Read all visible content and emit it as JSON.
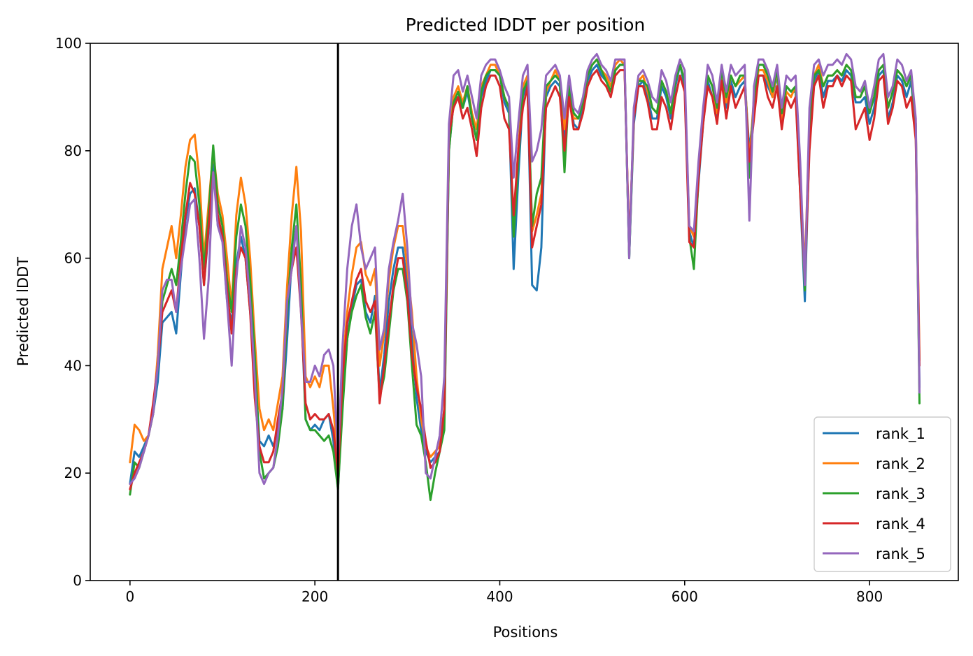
{
  "chart_data": {
    "type": "line",
    "title": "Predicted lDDT per position",
    "xlabel": "Positions",
    "ylabel": "Predicted lDDT",
    "xlim": [
      -43,
      896
    ],
    "ylim": [
      0,
      100
    ],
    "xticks": [
      0,
      200,
      400,
      600,
      800
    ],
    "yticks": [
      0,
      20,
      40,
      60,
      80,
      100
    ],
    "vline": 225,
    "grid": false,
    "legend_position": "lower right",
    "x": [
      0,
      5,
      10,
      15,
      20,
      25,
      30,
      35,
      40,
      45,
      50,
      55,
      60,
      65,
      70,
      75,
      80,
      85,
      90,
      95,
      100,
      105,
      110,
      115,
      120,
      125,
      130,
      135,
      140,
      145,
      150,
      155,
      160,
      165,
      170,
      175,
      180,
      185,
      190,
      195,
      200,
      205,
      210,
      215,
      220,
      225,
      230,
      235,
      240,
      245,
      250,
      255,
      260,
      265,
      270,
      275,
      280,
      285,
      290,
      295,
      300,
      305,
      310,
      315,
      320,
      325,
      330,
      335,
      340,
      345,
      350,
      355,
      360,
      365,
      370,
      375,
      380,
      385,
      390,
      395,
      400,
      405,
      410,
      415,
      420,
      425,
      430,
      435,
      440,
      445,
      450,
      455,
      460,
      465,
      470,
      475,
      480,
      485,
      490,
      495,
      500,
      505,
      510,
      515,
      520,
      525,
      530,
      535,
      540,
      545,
      550,
      555,
      560,
      565,
      570,
      575,
      580,
      585,
      590,
      595,
      600,
      605,
      610,
      615,
      620,
      625,
      630,
      635,
      640,
      645,
      650,
      655,
      660,
      665,
      670,
      675,
      680,
      685,
      690,
      695,
      700,
      705,
      710,
      715,
      720,
      725,
      730,
      735,
      740,
      745,
      750,
      755,
      760,
      765,
      770,
      775,
      780,
      785,
      790,
      795,
      800,
      805,
      810,
      815,
      820,
      825,
      830,
      835,
      840,
      845,
      850,
      854
    ],
    "series": [
      {
        "name": "rank_1",
        "color": "#1f77b4",
        "values": [
          18,
          24,
          23,
          25,
          27,
          31,
          37,
          48,
          49,
          50,
          46,
          57,
          67,
          72,
          73,
          66,
          55,
          65,
          78,
          66,
          64,
          52,
          48,
          59,
          64,
          60,
          50,
          40,
          26,
          25,
          27,
          25,
          28,
          32,
          45,
          60,
          66,
          52,
          30,
          28,
          29,
          28,
          30,
          31,
          26,
          17,
          34,
          45,
          51,
          55,
          56,
          50,
          48,
          53,
          35,
          42,
          52,
          58,
          62,
          62,
          55,
          45,
          34,
          28,
          24,
          22,
          23,
          24,
          30,
          80,
          89,
          90,
          88,
          91,
          86,
          82,
          90,
          93,
          95,
          95,
          94,
          89,
          87,
          58,
          75,
          90,
          93,
          55,
          54,
          62,
          90,
          92,
          93,
          92,
          82,
          92,
          85,
          84,
          88,
          93,
          95,
          96,
          94,
          93,
          91,
          95,
          96,
          96,
          60,
          85,
          92,
          93,
          90,
          86,
          86,
          92,
          90,
          86,
          92,
          96,
          92,
          65,
          62,
          74,
          85,
          93,
          90,
          86,
          94,
          88,
          93,
          90,
          92,
          93,
          80,
          88,
          94,
          94,
          92,
          90,
          94,
          86,
          92,
          91,
          91,
          72,
          52,
          82,
          93,
          95,
          90,
          93,
          93,
          94,
          93,
          95,
          94,
          89,
          89,
          90,
          85,
          88,
          94,
          95,
          86,
          89,
          94,
          93,
          90,
          93,
          83,
          36
        ]
      },
      {
        "name": "rank_2",
        "color": "#ff7f0e",
        "values": [
          22,
          29,
          28,
          26,
          27,
          31,
          42,
          58,
          62,
          66,
          60,
          68,
          77,
          82,
          83,
          75,
          60,
          70,
          80,
          72,
          68,
          60,
          51,
          68,
          75,
          70,
          60,
          45,
          32,
          28,
          30,
          28,
          33,
          38,
          55,
          68,
          77,
          65,
          38,
          36,
          38,
          36,
          40,
          40,
          32,
          22,
          40,
          50,
          57,
          62,
          63,
          57,
          55,
          58,
          40,
          46,
          56,
          62,
          66,
          66,
          58,
          50,
          38,
          30,
          25,
          23,
          24,
          25,
          32,
          82,
          90,
          92,
          89,
          92,
          87,
          84,
          92,
          94,
          96,
          96,
          94,
          90,
          88,
          65,
          80,
          92,
          94,
          65,
          68,
          72,
          91,
          93,
          95,
          93,
          84,
          93,
          86,
          86,
          89,
          94,
          96,
          97,
          95,
          94,
          92,
          96,
          97,
          96,
          62,
          86,
          93,
          94,
          91,
          88,
          87,
          93,
          91,
          87,
          93,
          96,
          93,
          66,
          64,
          76,
          86,
          94,
          92,
          87,
          95,
          89,
          94,
          92,
          93,
          94,
          78,
          90,
          95,
          95,
          93,
          90,
          95,
          85,
          91,
          90,
          92,
          75,
          58,
          85,
          94,
          96,
          92,
          94,
          94,
          95,
          94,
          96,
          95,
          90,
          90,
          92,
          88,
          90,
          95,
          96,
          88,
          91,
          95,
          94,
          92,
          94,
          85,
          41
        ]
      },
      {
        "name": "rank_3",
        "color": "#2ca02c",
        "values": [
          16,
          22,
          21,
          24,
          27,
          31,
          40,
          52,
          55,
          58,
          55,
          63,
          72,
          79,
          78,
          70,
          58,
          68,
          81,
          70,
          66,
          56,
          50,
          64,
          70,
          66,
          56,
          42,
          24,
          19,
          20,
          21,
          25,
          32,
          50,
          62,
          70,
          55,
          30,
          28,
          28,
          27,
          26,
          27,
          24,
          17,
          32,
          45,
          50,
          53,
          55,
          49,
          46,
          50,
          34,
          38,
          46,
          54,
          58,
          58,
          52,
          40,
          29,
          27,
          22,
          15,
          20,
          24,
          28,
          80,
          89,
          91,
          88,
          92,
          86,
          82,
          91,
          94,
          95,
          95,
          94,
          90,
          88,
          64,
          78,
          91,
          93,
          66,
          72,
          75,
          92,
          93,
          94,
          93,
          76,
          92,
          87,
          86,
          89,
          94,
          96,
          97,
          95,
          93,
          91,
          95,
          96,
          96,
          60,
          86,
          93,
          93,
          92,
          88,
          87,
          93,
          91,
          87,
          93,
          96,
          93,
          64,
          58,
          75,
          86,
          94,
          92,
          88,
          95,
          90,
          94,
          92,
          94,
          94,
          75,
          90,
          96,
          96,
          94,
          91,
          95,
          87,
          92,
          91,
          92,
          74,
          54,
          84,
          94,
          95,
          92,
          94,
          94,
          95,
          94,
          96,
          95,
          90,
          90,
          92,
          87,
          90,
          95,
          96,
          88,
          91,
          95,
          94,
          92,
          94,
          85,
          33
        ]
      },
      {
        "name": "rank_4",
        "color": "#d62728",
        "values": [
          17,
          20,
          22,
          24,
          27,
          33,
          40,
          50,
          52,
          54,
          50,
          60,
          68,
          74,
          72,
          66,
          55,
          66,
          76,
          68,
          64,
          54,
          46,
          58,
          62,
          60,
          50,
          34,
          25,
          22,
          22,
          24,
          30,
          35,
          52,
          58,
          62,
          50,
          33,
          30,
          31,
          30,
          30,
          31,
          28,
          20,
          38,
          48,
          52,
          56,
          58,
          52,
          50,
          52,
          33,
          40,
          48,
          55,
          60,
          60,
          53,
          42,
          36,
          32,
          26,
          21,
          22,
          24,
          32,
          83,
          88,
          90,
          86,
          88,
          84,
          79,
          88,
          92,
          94,
          94,
          92,
          86,
          84,
          68,
          80,
          88,
          92,
          62,
          66,
          70,
          88,
          90,
          92,
          90,
          80,
          90,
          84,
          84,
          87,
          92,
          94,
          95,
          93,
          92,
          90,
          94,
          95,
          95,
          62,
          86,
          92,
          92,
          89,
          84,
          84,
          90,
          88,
          84,
          90,
          94,
          91,
          63,
          62,
          75,
          85,
          92,
          90,
          85,
          93,
          86,
          92,
          88,
          90,
          92,
          78,
          86,
          94,
          94,
          90,
          88,
          92,
          84,
          90,
          88,
          90,
          72,
          56,
          80,
          92,
          94,
          88,
          92,
          92,
          94,
          92,
          94,
          93,
          84,
          86,
          88,
          82,
          86,
          93,
          94,
          85,
          88,
          93,
          92,
          88,
          90,
          82,
          40
        ]
      },
      {
        "name": "rank_5",
        "color": "#9467bd",
        "values": [
          18,
          19,
          21,
          24,
          27,
          31,
          40,
          54,
          56,
          56,
          50,
          58,
          64,
          70,
          71,
          60,
          45,
          56,
          76,
          66,
          63,
          52,
          40,
          56,
          66,
          62,
          52,
          38,
          20,
          18,
          20,
          21,
          27,
          36,
          52,
          58,
          66,
          50,
          37,
          37,
          40,
          38,
          42,
          43,
          40,
          23,
          44,
          58,
          66,
          70,
          62,
          58,
          60,
          62,
          43,
          47,
          58,
          63,
          67,
          72,
          62,
          48,
          44,
          38,
          20,
          19,
          23,
          27,
          38,
          85,
          94,
          95,
          91,
          94,
          90,
          86,
          94,
          96,
          97,
          97,
          95,
          92,
          90,
          75,
          85,
          94,
          96,
          78,
          80,
          84,
          94,
          95,
          96,
          94,
          86,
          94,
          88,
          87,
          90,
          95,
          97,
          98,
          96,
          95,
          93,
          97,
          97,
          97,
          60,
          88,
          94,
          95,
          93,
          90,
          89,
          95,
          93,
          89,
          94,
          97,
          95,
          66,
          65,
          78,
          88,
          96,
          94,
          89,
          96,
          91,
          96,
          94,
          95,
          96,
          67,
          92,
          97,
          97,
          95,
          92,
          96,
          88,
          94,
          93,
          94,
          78,
          55,
          88,
          96,
          97,
          94,
          96,
          96,
          97,
          96,
          98,
          97,
          92,
          91,
          93,
          88,
          92,
          97,
          98,
          90,
          92,
          97,
          96,
          93,
          95,
          86,
          35
        ]
      }
    ]
  }
}
